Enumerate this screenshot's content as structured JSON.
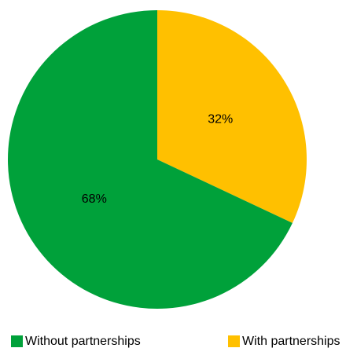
{
  "chart_data": {
    "type": "pie",
    "slices": [
      {
        "label": "With partnerships",
        "value": 32,
        "display": "32%",
        "color": "#FFC000"
      },
      {
        "label": "Without partnerships",
        "value": 68,
        "display": "68%",
        "color": "#00A13A"
      }
    ],
    "start_angle_deg": 0,
    "direction": "clockwise",
    "legend": {
      "position": "bottom",
      "items": [
        {
          "label": "Without partnerships",
          "color": "#00A13A"
        },
        {
          "label": "With partnerships",
          "color": "#FFC000"
        }
      ]
    }
  }
}
